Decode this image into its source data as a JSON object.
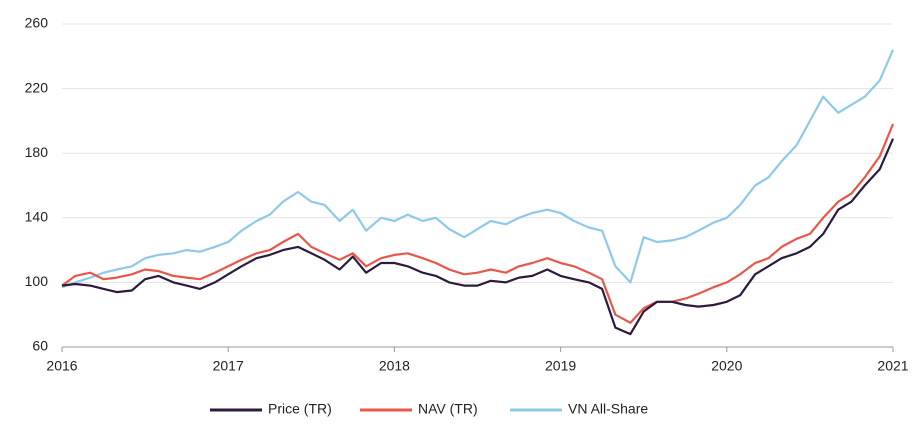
{
  "chart_data": {
    "type": "line",
    "x": [
      2016,
      2016.08,
      2016.17,
      2016.25,
      2016.33,
      2016.42,
      2016.5,
      2016.58,
      2016.67,
      2016.75,
      2016.83,
      2016.92,
      2017,
      2017.08,
      2017.17,
      2017.25,
      2017.33,
      2017.42,
      2017.5,
      2017.58,
      2017.67,
      2017.75,
      2017.83,
      2017.92,
      2018,
      2018.08,
      2018.17,
      2018.25,
      2018.33,
      2018.42,
      2018.5,
      2018.58,
      2018.67,
      2018.75,
      2018.83,
      2018.92,
      2019,
      2019.08,
      2019.17,
      2019.25,
      2019.33,
      2019.42,
      2019.5,
      2019.58,
      2019.67,
      2019.75,
      2019.83,
      2019.92,
      2020,
      2020.08,
      2020.17,
      2020.25,
      2020.33,
      2020.42,
      2020.5,
      2020.58,
      2020.67,
      2020.75,
      2020.83,
      2020.92,
      2021
    ],
    "series": [
      {
        "name": "Price (TR)",
        "color": "#2d1b3b",
        "values": [
          98,
          99,
          98,
          96,
          94,
          95,
          102,
          104,
          100,
          98,
          96,
          100,
          105,
          110,
          115,
          117,
          120,
          122,
          118,
          114,
          108,
          116,
          106,
          112,
          112,
          110,
          106,
          104,
          100,
          98,
          98,
          101,
          100,
          103,
          104,
          108,
          104,
          102,
          100,
          96,
          72,
          68,
          82,
          88,
          88,
          86,
          85,
          86,
          88,
          92,
          105,
          110,
          115,
          118,
          122,
          130,
          145,
          150,
          160,
          170,
          189
        ]
      },
      {
        "name": "NAV (TR)",
        "color": "#e8574a",
        "values": [
          98,
          104,
          106,
          102,
          103,
          105,
          108,
          107,
          104,
          103,
          102,
          106,
          110,
          114,
          118,
          120,
          125,
          130,
          122,
          118,
          114,
          118,
          110,
          115,
          117,
          118,
          115,
          112,
          108,
          105,
          106,
          108,
          106,
          110,
          112,
          115,
          112,
          110,
          106,
          102,
          80,
          75,
          84,
          88,
          88,
          90,
          93,
          97,
          100,
          105,
          112,
          115,
          122,
          127,
          130,
          140,
          150,
          155,
          165,
          178,
          198
        ]
      },
      {
        "name": "VN All-Share",
        "color": "#8fc9e9",
        "values": [
          97,
          100,
          103,
          106,
          108,
          110,
          115,
          117,
          118,
          120,
          119,
          122,
          125,
          132,
          138,
          142,
          150,
          156,
          150,
          148,
          138,
          145,
          132,
          140,
          138,
          142,
          138,
          140,
          133,
          128,
          133,
          138,
          136,
          140,
          143,
          145,
          143,
          138,
          134,
          132,
          110,
          100,
          128,
          125,
          126,
          128,
          132,
          137,
          140,
          148,
          160,
          165,
          175,
          185,
          200,
          215,
          205,
          210,
          215,
          225,
          244
        ]
      }
    ],
    "xlim": [
      2016,
      2021
    ],
    "xticks": [
      2016,
      2017,
      2018,
      2019,
      2020,
      2021
    ],
    "ylim": [
      60,
      260
    ],
    "yticks": [
      60,
      100,
      140,
      180,
      220,
      260
    ],
    "grid": true,
    "legend": "bottom"
  }
}
